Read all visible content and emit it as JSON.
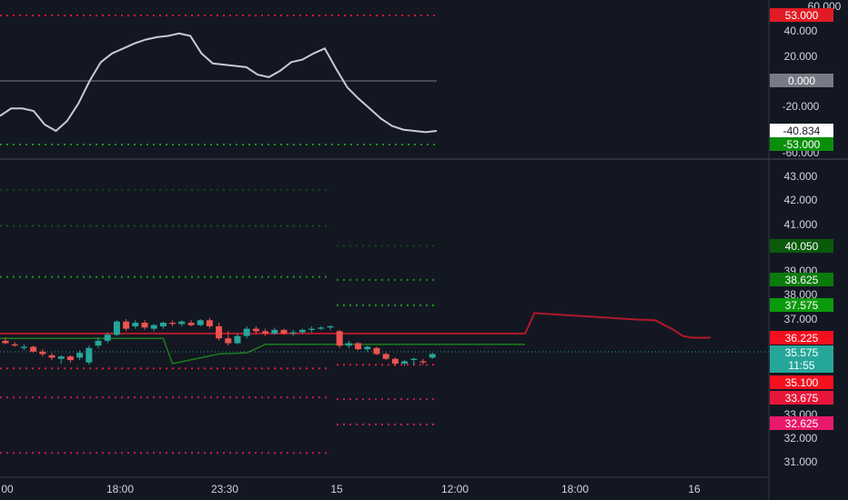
{
  "colors": {
    "background": "#131722",
    "axis_text": "#d1d4dc",
    "grid": "#2a2e39",
    "separator": "#363a45",
    "osc_line": "#c9cbd2",
    "candle_up": "#26a69a",
    "candle_down": "#ef5350",
    "red_line": "#b2182b",
    "green_line": "#1b7d1b",
    "ob_red": "#e0183b",
    "os_green": "#1a9a1a",
    "sig_red": "#ff1744",
    "sig_green": "#1b8a1b",
    "sig_green_dark": "#0e5a0e",
    "sig_pink": "#e91e63",
    "last_price": "#26a69a",
    "zero_tag": "#787b86"
  },
  "oscillator": {
    "y_ticks": [
      "60.000",
      "40.000",
      "20.000",
      "0.000",
      "-20.000",
      "-40.000",
      "-60.000"
    ],
    "overbought_label": "53.000",
    "oversold_label": "-53.000",
    "zero_label": "0.000",
    "current_label": "-40.834",
    "values": [
      -28,
      -22,
      -22,
      -24,
      -35,
      -40,
      -32,
      -18,
      0,
      15,
      22,
      26,
      30,
      33,
      35,
      36,
      38,
      36,
      22,
      14,
      13,
      12,
      11,
      5,
      3,
      8,
      15,
      17,
      22,
      26,
      10,
      -5,
      -14,
      -22,
      -30,
      -36,
      -39,
      -40,
      -41,
      -40
    ]
  },
  "price": {
    "y_ticks": [
      "43.000",
      "42.000",
      "41.000",
      "39.000",
      "38.000",
      "37.000",
      "33.000",
      "32.000",
      "31.000"
    ],
    "level_labels": [
      "40.050",
      "38.625",
      "37.575",
      "36.225",
      "35.575",
      "11:55",
      "35.100",
      "33.675",
      "32.625"
    ],
    "last_price_label": "35.575",
    "countdown_label": "11:55",
    "session1_levels": {
      "green": [
        42.37,
        40.87,
        38.75
      ],
      "red": [
        34.95,
        33.75,
        31.45
      ]
    },
    "session2_levels": {
      "green": [
        40.05,
        38.625,
        37.575
      ],
      "red": [
        35.1,
        33.675,
        32.625
      ]
    },
    "candles": [
      [
        36.1,
        36.25,
        35.95,
        36.0
      ],
      [
        35.95,
        36.05,
        35.85,
        35.9
      ],
      [
        35.8,
        35.95,
        35.7,
        35.85
      ],
      [
        35.85,
        35.9,
        35.6,
        35.65
      ],
      [
        35.65,
        35.75,
        35.45,
        35.55
      ],
      [
        35.5,
        35.6,
        35.3,
        35.4
      ],
      [
        35.35,
        35.5,
        35.15,
        35.45
      ],
      [
        35.45,
        35.5,
        35.2,
        35.3
      ],
      [
        35.4,
        35.7,
        35.3,
        35.6
      ],
      [
        35.2,
        35.9,
        35.1,
        35.8
      ],
      [
        35.9,
        36.25,
        35.8,
        36.1
      ],
      [
        36.1,
        36.45,
        36.0,
        36.35
      ],
      [
        36.35,
        36.95,
        36.3,
        36.9
      ],
      [
        36.9,
        37.0,
        36.5,
        36.6
      ],
      [
        36.7,
        36.95,
        36.6,
        36.85
      ],
      [
        36.85,
        36.95,
        36.55,
        36.65
      ],
      [
        36.6,
        36.8,
        36.5,
        36.75
      ],
      [
        36.7,
        36.9,
        36.6,
        36.85
      ],
      [
        36.85,
        36.95,
        36.7,
        36.8
      ],
      [
        36.8,
        36.95,
        36.7,
        36.9
      ],
      [
        36.85,
        36.95,
        36.7,
        36.75
      ],
      [
        36.75,
        37.0,
        36.7,
        36.95
      ],
      [
        36.95,
        37.05,
        36.6,
        36.7
      ],
      [
        36.7,
        36.85,
        36.1,
        36.2
      ],
      [
        36.2,
        36.5,
        35.9,
        36.0
      ],
      [
        36.0,
        36.4,
        35.95,
        36.3
      ],
      [
        36.3,
        36.7,
        36.2,
        36.6
      ],
      [
        36.6,
        36.7,
        36.4,
        36.5
      ],
      [
        36.5,
        36.6,
        36.3,
        36.4
      ],
      [
        36.4,
        36.65,
        36.35,
        36.55
      ],
      [
        36.55,
        36.6,
        36.35,
        36.4
      ],
      [
        36.4,
        36.55,
        36.3,
        36.45
      ],
      [
        36.45,
        36.6,
        36.4,
        36.55
      ],
      [
        36.55,
        36.7,
        36.45,
        36.6
      ],
      [
        36.6,
        36.7,
        36.55,
        36.65
      ],
      [
        36.65,
        36.75,
        36.55,
        36.7
      ],
      [
        36.5,
        36.55,
        35.8,
        35.9
      ],
      [
        35.9,
        36.1,
        35.8,
        36.0
      ],
      [
        36.0,
        36.05,
        35.7,
        35.75
      ],
      [
        35.75,
        35.9,
        35.65,
        35.85
      ],
      [
        35.8,
        35.85,
        35.5,
        35.55
      ],
      [
        35.55,
        35.6,
        35.3,
        35.35
      ],
      [
        35.35,
        35.4,
        35.05,
        35.15
      ],
      [
        35.15,
        35.3,
        35.05,
        35.25
      ],
      [
        35.3,
        35.4,
        35.1,
        35.35
      ],
      [
        35.25,
        35.35,
        35.1,
        35.2
      ],
      [
        35.4,
        35.6,
        35.35,
        35.55
      ]
    ],
    "red_line": {
      "x": [
        0,
        56,
        57,
        68,
        70,
        72,
        73,
        74,
        75,
        76
      ],
      "y": [
        36.4,
        36.4,
        37.25,
        36.98,
        36.95,
        36.55,
        36.3,
        36.225,
        36.225,
        36.225
      ]
    },
    "green_line": {
      "x": [
        0,
        17,
        18,
        23,
        26,
        28,
        56
      ],
      "y": [
        36.2,
        36.2,
        35.15,
        35.55,
        35.6,
        35.95,
        35.95
      ]
    }
  },
  "time_axis": {
    "labels": [
      "00",
      "18:00",
      "23:30",
      "15",
      "12:00",
      "18:00",
      "16"
    ]
  }
}
